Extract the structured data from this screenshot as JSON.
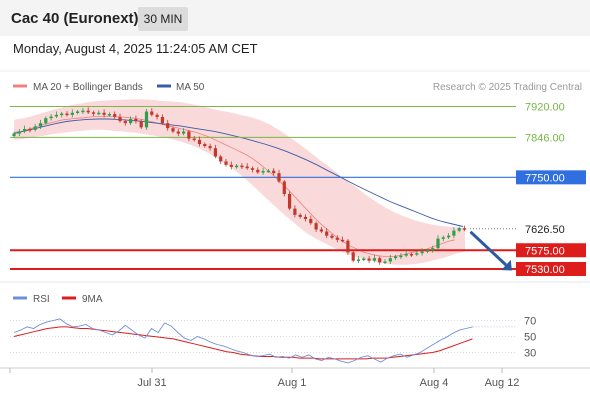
{
  "header": {
    "title": "Cac 40 (Euronext)",
    "timeframe": "30 MIN",
    "datetime": "Monday, August 4, 2025 11:24:05 AM CET"
  },
  "colors": {
    "bollinger": "#f08080",
    "ma50": "#3a5ba8",
    "resistance": "#7ab648",
    "pivot": "#2f6fe0",
    "support": "#dd1c1c",
    "rsi": "#6f8fd6",
    "rsi_ma": "#dd1c1c",
    "candle_up": "#2e9e4a",
    "candle_down": "#c0392b",
    "arrow": "#2c5aa0"
  },
  "chart_data": [
    {
      "type": "candlestick",
      "legend": [
        "MA 20 + Bollinger Bands",
        "MA 50"
      ],
      "source_note": "Research © 2025 Trading Central",
      "x_tick_labels": [
        "Jul 31",
        "Aug 1",
        "Aug 4",
        "Aug 12"
      ],
      "y_range": [
        7500,
        7960
      ],
      "levels": [
        {
          "value": 7920.0,
          "label": "7920.00",
          "kind": "resistance"
        },
        {
          "value": 7846.0,
          "label": "7846.00",
          "kind": "resistance"
        },
        {
          "value": 7750.0,
          "label": "7750.00",
          "kind": "pivot"
        },
        {
          "value": 7626.5,
          "label": "7626.50",
          "kind": "last"
        },
        {
          "value": 7575.0,
          "label": "7575.00",
          "kind": "support"
        },
        {
          "value": 7530.0,
          "label": "7530.00",
          "kind": "support"
        }
      ],
      "forecast_arrow": {
        "from": 7626.5,
        "to": 7530.0
      },
      "closes": [
        7855,
        7860,
        7866,
        7864,
        7872,
        7880,
        7892,
        7896,
        7900,
        7903,
        7900,
        7905,
        7908,
        7910,
        7906,
        7903,
        7905,
        7900,
        7902,
        7895,
        7885,
        7880,
        7890,
        7885,
        7870,
        7908,
        7900,
        7895,
        7880,
        7868,
        7860,
        7855,
        7860,
        7843,
        7840,
        7830,
        7825,
        7820,
        7800,
        7788,
        7780,
        7775,
        7778,
        7776,
        7772,
        7768,
        7762,
        7765,
        7766,
        7760,
        7740,
        7710,
        7675,
        7660,
        7655,
        7650,
        7640,
        7625,
        7620,
        7610,
        7605,
        7600,
        7598,
        7570,
        7550,
        7553,
        7555,
        7550,
        7556,
        7546,
        7548,
        7556,
        7560,
        7562,
        7566,
        7565,
        7568,
        7572,
        7575,
        7580,
        7603,
        7606,
        7610,
        7622,
        7628,
        7627
      ],
      "bb_mid": [
        7858,
        7860,
        7865,
        7870,
        7876,
        7880,
        7884,
        7888,
        7890,
        7892,
        7893,
        7895,
        7896,
        7896,
        7896,
        7895,
        7894,
        7892,
        7890,
        7886,
        7882,
        7878,
        7874,
        7870,
        7866,
        7862,
        7858,
        7852,
        7846,
        7838,
        7830,
        7822,
        7814,
        7806,
        7796,
        7784,
        7770,
        7756,
        7740,
        7724,
        7706,
        7688,
        7670,
        7652,
        7636,
        7622,
        7608,
        7596,
        7586,
        7578,
        7570,
        7566,
        7562,
        7560,
        7560,
        7562,
        7566,
        7570,
        7574,
        7578,
        7584,
        7590,
        7596,
        7600
      ],
      "bb_upper": [
        7888,
        7892,
        7898,
        7905,
        7912,
        7918,
        7924,
        7928,
        7932,
        7934,
        7935,
        7936,
        7937,
        7937,
        7936,
        7934,
        7932,
        7930,
        7926,
        7922,
        7916,
        7910,
        7906,
        7900,
        7895,
        7888,
        7878,
        7864,
        7848,
        7832,
        7814,
        7795,
        7778,
        7760,
        7742,
        7724,
        7706,
        7690,
        7676,
        7664,
        7654,
        7646,
        7640,
        7635,
        7632,
        7630,
        7628
      ],
      "bb_lower": [
        7840,
        7842,
        7846,
        7850,
        7854,
        7857,
        7860,
        7862,
        7864,
        7864,
        7862,
        7860,
        7858,
        7855,
        7851,
        7847,
        7842,
        7836,
        7828,
        7818,
        7806,
        7792,
        7776,
        7758,
        7738,
        7716,
        7694,
        7672,
        7652,
        7632,
        7614,
        7600,
        7588,
        7576,
        7566,
        7558,
        7552,
        7546,
        7542,
        7540,
        7540,
        7542,
        7546,
        7552,
        7558,
        7566,
        7572
      ],
      "ma50": [
        7855,
        7861,
        7867,
        7873,
        7879,
        7884,
        7887,
        7889,
        7890,
        7890,
        7889,
        7887,
        7885,
        7882,
        7879,
        7876,
        7873,
        7869,
        7865,
        7861,
        7856,
        7850,
        7844,
        7837,
        7830,
        7822,
        7813,
        7803,
        7792,
        7780,
        7767,
        7754,
        7741,
        7728,
        7716,
        7704,
        7692,
        7682,
        7672,
        7662,
        7652,
        7644,
        7638,
        7632
      ]
    },
    {
      "type": "line",
      "legend": [
        "RSI",
        "9MA"
      ],
      "y_tick_labels": [
        "70",
        "50",
        "30"
      ],
      "y_range": [
        10,
        90
      ],
      "rsi": [
        55,
        58,
        62,
        60,
        65,
        68,
        70,
        72,
        66,
        62,
        63,
        65,
        60,
        58,
        55,
        52,
        57,
        64,
        58,
        52,
        48,
        60,
        55,
        67,
        63,
        55,
        48,
        45,
        50,
        47,
        43,
        40,
        38,
        35,
        32,
        30,
        27,
        25,
        26,
        28,
        24,
        25,
        23,
        27,
        24,
        27,
        22,
        20,
        24,
        22,
        19,
        17,
        20,
        24,
        26,
        22,
        18,
        23,
        26,
        28,
        24,
        27,
        30,
        35,
        40,
        45,
        49,
        54,
        58,
        60,
        62
      ],
      "rsi_ma": [
        50,
        52,
        54,
        56,
        58,
        60,
        61,
        62,
        62,
        61,
        60,
        60,
        59,
        58,
        57,
        56,
        55,
        54,
        53,
        52,
        51,
        50,
        49,
        48,
        47,
        45,
        43,
        41,
        39,
        37,
        35,
        33,
        31,
        30,
        28,
        27,
        26,
        25,
        25,
        25,
        24,
        24,
        24,
        23,
        23,
        23,
        22,
        22,
        22,
        22,
        22,
        22,
        22,
        22,
        23,
        23,
        23,
        24,
        25,
        26,
        27,
        28,
        29,
        30,
        32,
        35,
        38,
        41,
        44,
        47
      ]
    }
  ]
}
